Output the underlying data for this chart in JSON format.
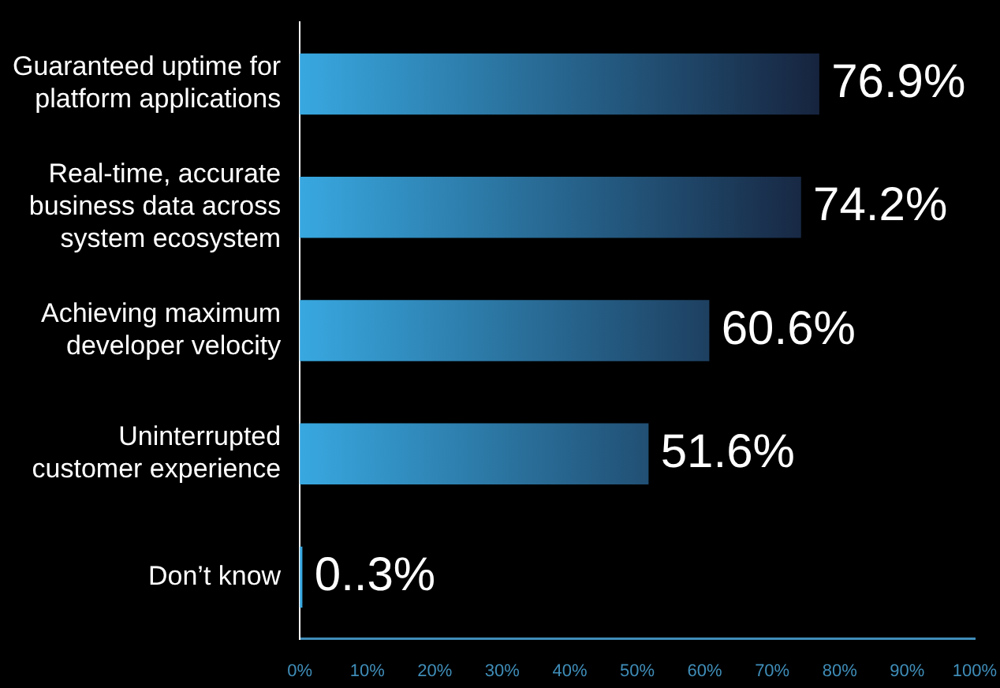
{
  "chart_data": {
    "type": "bar",
    "orientation": "horizontal",
    "categories": [
      "Guaranteed uptime for\nplatform applications",
      "Real-time, accurate\nbusiness data across\nsystem ecosystem",
      "Achieving maximum\ndeveloper velocity",
      "Uninterrupted\ncustomer experience",
      "Don’t know"
    ],
    "values": [
      76.9,
      74.2,
      60.6,
      51.6,
      0.3
    ],
    "value_labels": [
      "76.9%",
      "74.2%",
      "60.6%",
      "51.6%",
      "0..3%"
    ],
    "color": "#38a8e0",
    "xlim": [
      0,
      100
    ],
    "xticks": [
      {
        "value": 0,
        "label": "0%"
      },
      {
        "value": 10,
        "label": "10%"
      },
      {
        "value": 20,
        "label": "20%"
      },
      {
        "value": 30,
        "label": "30%"
      },
      {
        "value": 40,
        "label": "40%"
      },
      {
        "value": 50,
        "label": "50%"
      },
      {
        "value": 60,
        "label": "60%"
      },
      {
        "value": 70,
        "label": "70%"
      },
      {
        "value": 80,
        "label": "80%"
      },
      {
        "value": 90,
        "label": "90%"
      },
      {
        "value": 100,
        "label": "100%"
      }
    ],
    "grid": false,
    "legend": false
  }
}
